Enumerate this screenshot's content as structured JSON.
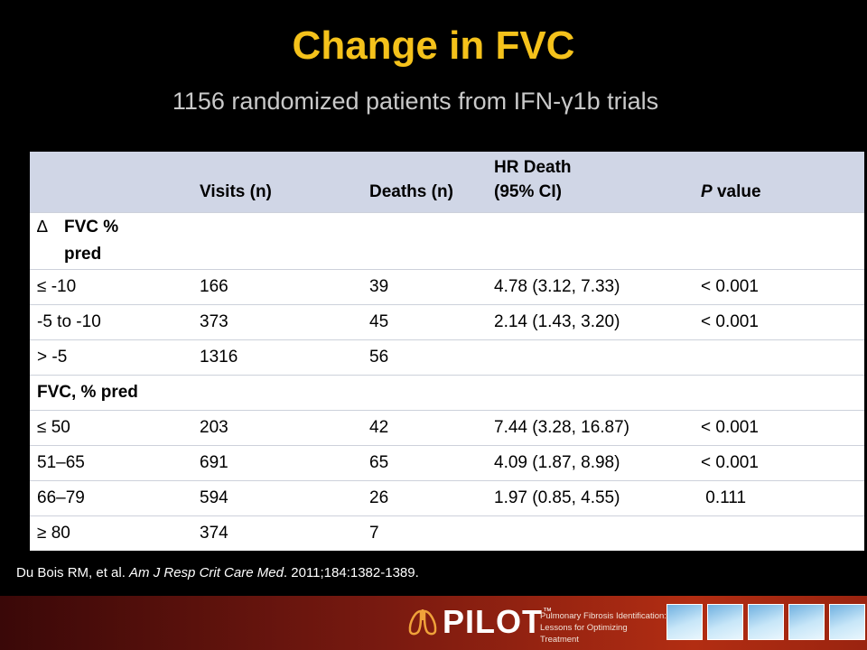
{
  "title": "Change in FVC",
  "subtitle": "1156 randomized patients from IFN-γ1b trials",
  "table": {
    "headers": [
      "",
      "Visits (n)",
      "Deaths (n)",
      "HR Death",
      "(95% CI)",
      "P",
      " value"
    ],
    "group1": {
      "symbol": "∆",
      "label_line1": "FVC %",
      "label_line2": "pred"
    },
    "rows1": [
      [
        "≤ -10",
        "166",
        "39",
        "4.78 (3.12, 7.33)",
        "< 0.001"
      ],
      [
        "-5 to -10",
        "373",
        "45",
        "2.14 (1.43, 3.20)",
        "< 0.001"
      ],
      [
        "> -5",
        "1316",
        "56",
        "",
        ""
      ]
    ],
    "group2": {
      "label": "FVC, % pred"
    },
    "rows2": [
      [
        "≤ 50",
        "203",
        "42",
        "7.44 (3.28, 16.87)",
        "< 0.001"
      ],
      [
        "51–65",
        "691",
        "65",
        "4.09 (1.87, 8.98)",
        "< 0.001"
      ],
      [
        "66–79",
        "594",
        "26",
        "1.97 (0.85, 4.55)",
        " 0.111"
      ],
      [
        "≥ 80",
        "374",
        "7",
        "",
        ""
      ]
    ]
  },
  "citation": {
    "authors": "Du Bois RM, et al. ",
    "journal": "Am J Resp Crit Care Med",
    "details": ". 2011;184:1382-1389."
  },
  "footer": {
    "logo_text": "PILOT",
    "trademark": "™",
    "tagline_line1": "Pulmonary Fibrosis Identification:",
    "tagline_line2": "Lessons for Optimizing Treatment"
  }
}
